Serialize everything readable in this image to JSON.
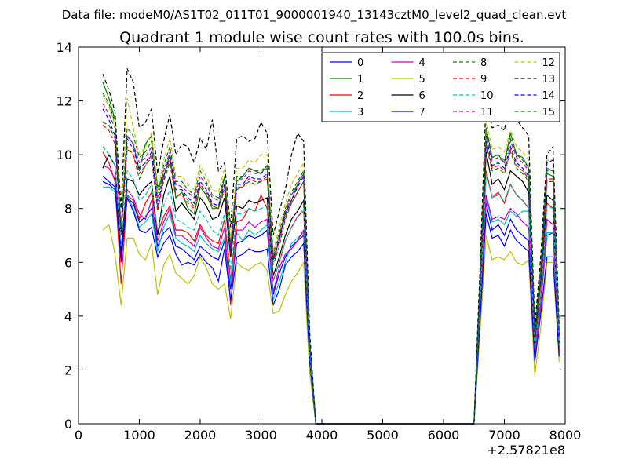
{
  "chart_data": {
    "type": "line",
    "suptitle": "Data file: modeM0/AS1T02_011T01_9000001940_13143cztM0_level2_quad_clean.evt",
    "title": "Quadrant 1 module wise count rates with 100.0s bins.",
    "xlabel": "",
    "ylabel": "",
    "x_offset_label": "+2.57821e8",
    "xlim": [
      0,
      8000
    ],
    "ylim": [
      0,
      14
    ],
    "xticks": [
      0,
      1000,
      2000,
      3000,
      4000,
      5000,
      6000,
      7000,
      8000
    ],
    "yticks": [
      0,
      2,
      4,
      6,
      8,
      10,
      12,
      14
    ],
    "legend_location": "top-right",
    "x": [
      400,
      500,
      600,
      700,
      800,
      900,
      1000,
      1100,
      1200,
      1300,
      1400,
      1500,
      1600,
      1700,
      1800,
      1900,
      2000,
      2100,
      2200,
      2300,
      2400,
      2500,
      2600,
      2700,
      2800,
      2900,
      3000,
      3100,
      3200,
      3300,
      3400,
      3500,
      3600,
      3700,
      3800,
      3900,
      4000,
      6500,
      6600,
      6700,
      6800,
      6900,
      7000,
      7100,
      7200,
      7300,
      7400,
      7500,
      7600,
      7700,
      7800,
      7900
    ],
    "series": [
      {
        "name": "0",
        "color": "#0000ff",
        "dash": "solid",
        "values": [
          9.0,
          8.9,
          8.7,
          6.0,
          8.4,
          8.2,
          7.5,
          7.7,
          8.0,
          6.6,
          7.1,
          7.3,
          6.6,
          6.5,
          6.3,
          6.1,
          6.6,
          6.4,
          6.2,
          6.1,
          6.8,
          5.0,
          6.7,
          6.8,
          7.0,
          6.9,
          7.0,
          7.2,
          4.8,
          5.6,
          6.2,
          6.6,
          6.8,
          7.0,
          2.5,
          0,
          0,
          0,
          4.0,
          8.2,
          7.2,
          7.4,
          7.0,
          7.6,
          7.2,
          7.0,
          6.8,
          2.6,
          4.5,
          7.0,
          7.1,
          2.8
        ]
      },
      {
        "name": "1",
        "color": "#008000",
        "dash": "solid",
        "values": [
          12.7,
          12.1,
          11.3,
          7.1,
          10.7,
          10.4,
          9.4,
          10.4,
          10.7,
          8.8,
          9.2,
          10.0,
          8.4,
          8.6,
          8.0,
          7.8,
          8.8,
          8.5,
          8.0,
          8.0,
          9.2,
          6.6,
          9.0,
          9.2,
          9.5,
          9.4,
          9.3,
          9.6,
          6.1,
          6.8,
          7.9,
          8.3,
          8.9,
          9.3,
          3.0,
          0,
          0,
          0,
          5.4,
          11.0,
          9.9,
          10.0,
          9.7,
          10.8,
          10.0,
          9.9,
          9.5,
          3.4,
          5.9,
          9.3,
          9.2,
          3.4
        ]
      },
      {
        "name": "2",
        "color": "#ff0000",
        "dash": "solid",
        "values": [
          10.1,
          9.7,
          9.0,
          5.2,
          8.5,
          8.3,
          7.6,
          8.2,
          8.6,
          7.1,
          7.7,
          8.1,
          7.2,
          7.2,
          7.1,
          6.8,
          7.4,
          7.0,
          6.8,
          6.7,
          7.6,
          5.3,
          7.5,
          7.6,
          8.0,
          7.9,
          8.5,
          8.0,
          5.3,
          6.0,
          6.8,
          7.3,
          7.7,
          7.9,
          2.6,
          0,
          0,
          0,
          4.5,
          9.4,
          8.4,
          8.6,
          8.2,
          8.9,
          8.5,
          8.3,
          8.0,
          2.8,
          4.8,
          8.2,
          8.0,
          2.7
        ]
      },
      {
        "name": "3",
        "color": "#00bfbf",
        "dash": "solid",
        "values": [
          8.8,
          8.8,
          8.6,
          6.6,
          8.5,
          8.0,
          7.3,
          7.5,
          7.8,
          6.4,
          7.3,
          7.8,
          6.9,
          6.7,
          6.6,
          6.4,
          7.0,
          6.7,
          6.5,
          6.4,
          6.9,
          5.2,
          7.1,
          6.8,
          7.2,
          7.0,
          7.2,
          7.4,
          4.6,
          5.3,
          6.0,
          6.7,
          6.9,
          7.1,
          2.4,
          0,
          0,
          0,
          4.1,
          8.4,
          7.5,
          7.6,
          7.4,
          7.9,
          7.7,
          7.9,
          7.9,
          2.5,
          4.5,
          7.1,
          7.1,
          2.8
        ]
      },
      {
        "name": "4",
        "color": "#bf00bf",
        "dash": "solid",
        "values": [
          9.6,
          9.5,
          9.1,
          6.3,
          8.7,
          8.4,
          7.8,
          7.6,
          8.3,
          6.8,
          7.5,
          8.0,
          7.0,
          7.0,
          6.8,
          6.6,
          7.3,
          6.9,
          6.6,
          6.5,
          7.3,
          4.4,
          7.2,
          7.2,
          7.5,
          7.3,
          7.5,
          7.6,
          4.9,
          5.8,
          6.3,
          6.5,
          6.8,
          7.2,
          2.5,
          0,
          0,
          0,
          4.2,
          8.5,
          7.6,
          7.7,
          7.6,
          8.0,
          7.8,
          7.5,
          7.3,
          2.6,
          4.4,
          7.6,
          7.4,
          2.6
        ]
      },
      {
        "name": "5",
        "color": "#bfbf00",
        "dash": "solid",
        "values": [
          7.2,
          7.4,
          6.3,
          4.4,
          6.9,
          6.9,
          6.3,
          6.1,
          6.7,
          4.8,
          5.9,
          6.3,
          5.6,
          5.4,
          5.2,
          5.5,
          6.2,
          5.8,
          5.2,
          5.0,
          5.2,
          3.9,
          6.0,
          5.8,
          5.7,
          5.9,
          6.0,
          5.7,
          4.1,
          4.2,
          4.8,
          5.3,
          5.6,
          6.0,
          1.9,
          0,
          0,
          0,
          3.4,
          7.0,
          6.1,
          6.2,
          6.1,
          6.4,
          6.0,
          5.9,
          6.1,
          1.8,
          3.6,
          6.0,
          6.0,
          2.3
        ]
      },
      {
        "name": "6",
        "color": "#000000",
        "dash": "solid",
        "values": [
          9.5,
          10.0,
          9.6,
          6.4,
          9.1,
          9.0,
          8.5,
          8.8,
          9.0,
          7.0,
          8.5,
          9.2,
          7.9,
          8.2,
          7.9,
          7.6,
          8.4,
          8.1,
          7.6,
          7.7,
          8.4,
          6.2,
          8.1,
          8.0,
          8.3,
          8.2,
          8.3,
          8.4,
          5.5,
          6.2,
          7.0,
          7.6,
          7.9,
          8.3,
          2.8,
          0,
          0,
          0,
          4.8,
          10.1,
          8.9,
          9.1,
          8.7,
          9.4,
          9.2,
          9.0,
          8.6,
          3.0,
          5.3,
          8.5,
          8.3,
          3.0
        ]
      },
      {
        "name": "7",
        "color": "#0000ff",
        "dash": "solid",
        "values": [
          9.2,
          9.0,
          8.8,
          6.2,
          8.4,
          7.9,
          7.2,
          7.1,
          7.3,
          6.2,
          6.7,
          7.0,
          6.3,
          5.9,
          6.0,
          5.9,
          6.3,
          6.0,
          5.8,
          5.3,
          6.5,
          4.6,
          6.2,
          6.3,
          6.5,
          6.4,
          6.4,
          6.5,
          4.4,
          5.0,
          5.9,
          6.2,
          6.4,
          6.7,
          2.3,
          0,
          0,
          0,
          3.8,
          7.8,
          6.9,
          7.0,
          6.6,
          7.2,
          6.8,
          6.6,
          6.4,
          2.3,
          4.1,
          6.2,
          6.2,
          2.5
        ]
      },
      {
        "name": "8",
        "color": "#008000",
        "dash": "dashed",
        "values": [
          11.2,
          11.1,
          10.6,
          7.2,
          10.2,
          10.0,
          9.1,
          9.6,
          9.9,
          8.0,
          9.0,
          9.7,
          8.4,
          8.6,
          8.3,
          8.1,
          9.0,
          8.7,
          8.1,
          8.0,
          8.7,
          6.4,
          8.7,
          8.8,
          9.0,
          8.9,
          9.0,
          9.1,
          5.9,
          6.6,
          7.6,
          8.2,
          8.6,
          9.0,
          2.9,
          0,
          0,
          0,
          5.0,
          10.4,
          9.4,
          9.5,
          9.3,
          10.1,
          9.5,
          9.3,
          9.0,
          3.1,
          5.4,
          9.0,
          9.0,
          3.2
        ]
      },
      {
        "name": "9",
        "color": "#ff0000",
        "dash": "dashed",
        "values": [
          11.1,
          10.9,
          10.4,
          7.0,
          10.3,
          10.0,
          9.3,
          9.6,
          10.0,
          7.9,
          9.1,
          9.8,
          8.5,
          8.5,
          8.2,
          8.0,
          8.9,
          8.6,
          8.1,
          8.0,
          8.8,
          6.3,
          8.8,
          8.8,
          9.1,
          9.0,
          9.0,
          9.2,
          6.0,
          6.8,
          7.7,
          8.2,
          8.6,
          9.0,
          2.9,
          0,
          0,
          0,
          5.0,
          10.5,
          9.5,
          9.6,
          9.4,
          10.2,
          9.6,
          9.4,
          9.1,
          3.1,
          5.4,
          9.1,
          9.1,
          3.2
        ]
      },
      {
        "name": "10",
        "color": "#00bfbf",
        "dash": "dashed",
        "values": [
          10.3,
          10.0,
          9.6,
          6.6,
          9.4,
          9.1,
          8.3,
          8.5,
          8.9,
          7.2,
          8.1,
          8.7,
          7.6,
          7.5,
          7.3,
          7.2,
          7.9,
          7.6,
          7.2,
          7.0,
          7.8,
          5.7,
          7.8,
          7.8,
          8.0,
          7.9,
          8.0,
          8.1,
          5.3,
          6.0,
          6.8,
          7.3,
          7.7,
          8.0,
          2.6,
          0,
          0,
          0,
          4.5,
          9.3,
          8.4,
          8.5,
          8.3,
          8.9,
          8.5,
          8.3,
          8.0,
          2.8,
          4.8,
          8.1,
          8.0,
          2.9
        ]
      },
      {
        "name": "11",
        "color": "#bf00bf",
        "dash": "dashed",
        "values": [
          11.9,
          11.5,
          11.0,
          7.2,
          10.7,
          10.4,
          9.7,
          9.9,
          10.3,
          8.3,
          9.4,
          10.1,
          8.9,
          8.8,
          8.6,
          8.4,
          9.2,
          8.9,
          8.4,
          8.3,
          9.1,
          6.5,
          9.1,
          9.1,
          9.4,
          9.3,
          9.3,
          9.5,
          6.2,
          7.0,
          7.9,
          8.5,
          8.9,
          9.3,
          3.0,
          0,
          0,
          0,
          5.2,
          10.9,
          9.8,
          9.9,
          9.7,
          10.5,
          9.9,
          9.7,
          9.4,
          3.2,
          5.6,
          9.4,
          9.4,
          3.3
        ]
      },
      {
        "name": "12",
        "color": "#bfbf00",
        "dash": "dashed",
        "values": [
          12.2,
          11.8,
          11.1,
          7.4,
          12.1,
          11.0,
          10.0,
          10.3,
          10.8,
          8.6,
          9.8,
          10.6,
          9.2,
          9.2,
          8.9,
          8.7,
          9.6,
          9.2,
          8.7,
          8.6,
          9.5,
          6.8,
          9.5,
          9.5,
          9.8,
          9.7,
          10.0,
          10.0,
          6.4,
          7.3,
          8.2,
          8.9,
          9.3,
          9.7,
          3.1,
          0,
          0,
          0,
          5.4,
          11.3,
          10.2,
          10.3,
          10.1,
          10.9,
          10.3,
          10.1,
          9.8,
          3.3,
          5.8,
          9.8,
          9.8,
          3.4
        ]
      },
      {
        "name": "13",
        "color": "#000000",
        "dash": "dashed",
        "values": [
          13.0,
          12.4,
          11.6,
          8.0,
          13.2,
          12.7,
          11.0,
          11.2,
          11.7,
          9.3,
          10.5,
          11.5,
          10.0,
          10.4,
          10.3,
          9.7,
          10.6,
          10.2,
          11.3,
          9.4,
          9.7,
          7.3,
          10.6,
          10.7,
          10.5,
          10.6,
          11.2,
          10.8,
          7.0,
          7.9,
          8.7,
          10.0,
          10.8,
          10.5,
          3.4,
          0,
          0,
          0,
          5.8,
          12.2,
          11.0,
          11.1,
          10.9,
          12.1,
          11.3,
          11.0,
          10.7,
          3.6,
          6.3,
          10.0,
          10.3,
          3.7
        ]
      },
      {
        "name": "14",
        "color": "#0000ff",
        "dash": "dashed",
        "values": [
          11.7,
          11.3,
          10.7,
          7.1,
          10.6,
          10.2,
          9.5,
          9.7,
          10.1,
          8.1,
          9.2,
          9.9,
          8.7,
          8.7,
          8.4,
          8.2,
          9.0,
          8.7,
          8.2,
          8.1,
          8.9,
          6.4,
          8.9,
          8.9,
          9.2,
          9.1,
          9.1,
          9.3,
          6.1,
          6.9,
          7.8,
          8.3,
          8.8,
          9.2,
          3.0,
          0,
          0,
          0,
          5.1,
          10.7,
          9.6,
          9.7,
          9.5,
          10.3,
          9.7,
          9.5,
          9.2,
          3.2,
          5.5,
          9.7,
          9.8,
          3.3
        ]
      },
      {
        "name": "15",
        "color": "#008000",
        "dash": "dashed",
        "values": [
          12.3,
          11.9,
          11.2,
          7.3,
          11.0,
          10.7,
          9.9,
          10.1,
          10.5,
          8.4,
          9.6,
          10.3,
          9.0,
          9.0,
          8.7,
          8.5,
          9.4,
          9.0,
          8.5,
          8.4,
          9.2,
          6.6,
          9.2,
          9.2,
          9.5,
          9.4,
          9.4,
          9.6,
          6.3,
          7.1,
          8.0,
          8.6,
          9.0,
          9.4,
          3.0,
          0,
          0,
          0,
          5.2,
          11.0,
          9.9,
          10.0,
          9.8,
          10.6,
          10.0,
          9.8,
          9.5,
          3.3,
          5.7,
          9.5,
          9.4,
          3.4
        ]
      }
    ]
  }
}
